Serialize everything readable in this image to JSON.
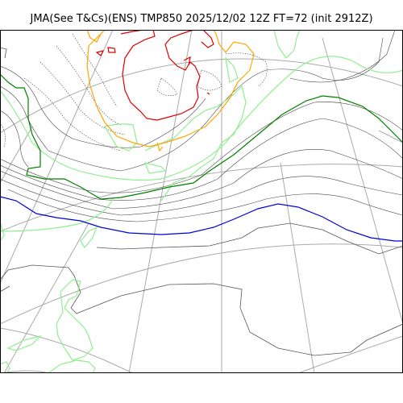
{
  "title": "JMA(See T&Cs)(ENS) TMP850 2025/12/02 12Z FT=72 (init 2912Z)",
  "colors": {
    "background": "#ffffff",
    "graticule": "#aaaaaa",
    "coast": "#555555",
    "isotherm_thin": "#444444",
    "isotherm_light_green": "#90ee90",
    "isotherm_green": "#008000",
    "isotherm_blue": "#0000dd",
    "isotherm_orange": "#ffa500",
    "isotherm_red": "#e00000",
    "land_outline": "#90ee90",
    "frame": "#000000"
  }
}
